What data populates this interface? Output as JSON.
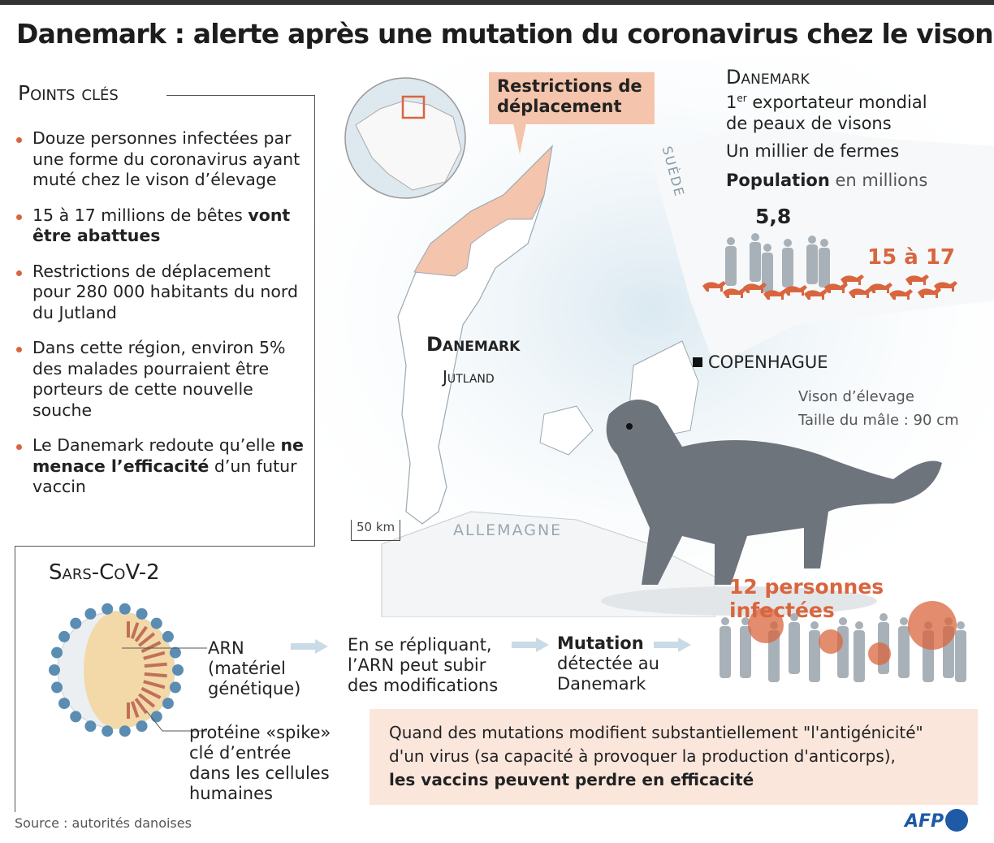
{
  "title": "Danemark : alerte après une mutation du coronavirus chez le vison",
  "key_points": {
    "title": "Points clés",
    "items": [
      {
        "text": "Douze personnes infectées par une forme du coronavirus ayant muté chez le vison d’élevage",
        "bold": ""
      },
      {
        "text": "15 à 17 millions de bêtes ",
        "bold": "vont être abattues"
      },
      {
        "text": "Restrictions de déplacement pour 280 000 habitants du nord du Jutland",
        "bold": ""
      },
      {
        "text": "Dans cette région, environ 5% des malades pourraient être porteurs de cette nouvelle souche",
        "bold": ""
      },
      {
        "text": "Le Danemark redoute qu’elle ",
        "bold": "ne menace l’efficacité",
        "after": " d’un futur vaccin"
      }
    ]
  },
  "map": {
    "restrictions_label": "Restrictions de déplacement",
    "sweden_label": "SUÈDE",
    "denmark_label": "Danemark",
    "jutland_label": "Jutland",
    "copenhagen_label": "COPENHAGUE",
    "germany_label": "ALLEMAGNE",
    "scale_label": "50 km",
    "restriction_color": "#f4c4ac"
  },
  "denmark_info": {
    "title": "Danemark",
    "rank_sup": "er",
    "rank_num": "1",
    "exporter_line1": " exportateur mondial",
    "exporter_line2": "de peaux de visons",
    "farms": "Un millier de fermes",
    "population_bold": "Population",
    "population_rest": " en millions",
    "human_population": "5,8",
    "mink_population": "15 à 17"
  },
  "mink": {
    "caption_line1": "Vison d’élevage",
    "caption_line2": "Taille du mâle : 90 cm"
  },
  "infected": "12 personnes infectées",
  "sars": {
    "title": "Sars-CoV-2",
    "arn_label": "ARN (matériel génétique)",
    "spike_label": "protéine «spike» clé d’entrée dans les cellules humaines",
    "step1": "En se répliquant, l’ARN peut subir des modifications",
    "step2_bold": "Mutation",
    "step2_rest": "détectée au Danemark"
  },
  "note": {
    "text": "Quand des mutations modifient substantiellement \"l'antigénicité\" d'un virus (sa capacité à provoquer la production d'anticorps),",
    "bold": "les vaccins peuvent perdre en efficacité"
  },
  "source": "Source : autorités danoises",
  "logo": "AFP",
  "colors": {
    "accent": "#d9653e",
    "virus_spike": "#5b8db3",
    "human_silhouette": "#a9b1b8",
    "mink": "#6e747b",
    "arrow": "#c9dbe6"
  }
}
